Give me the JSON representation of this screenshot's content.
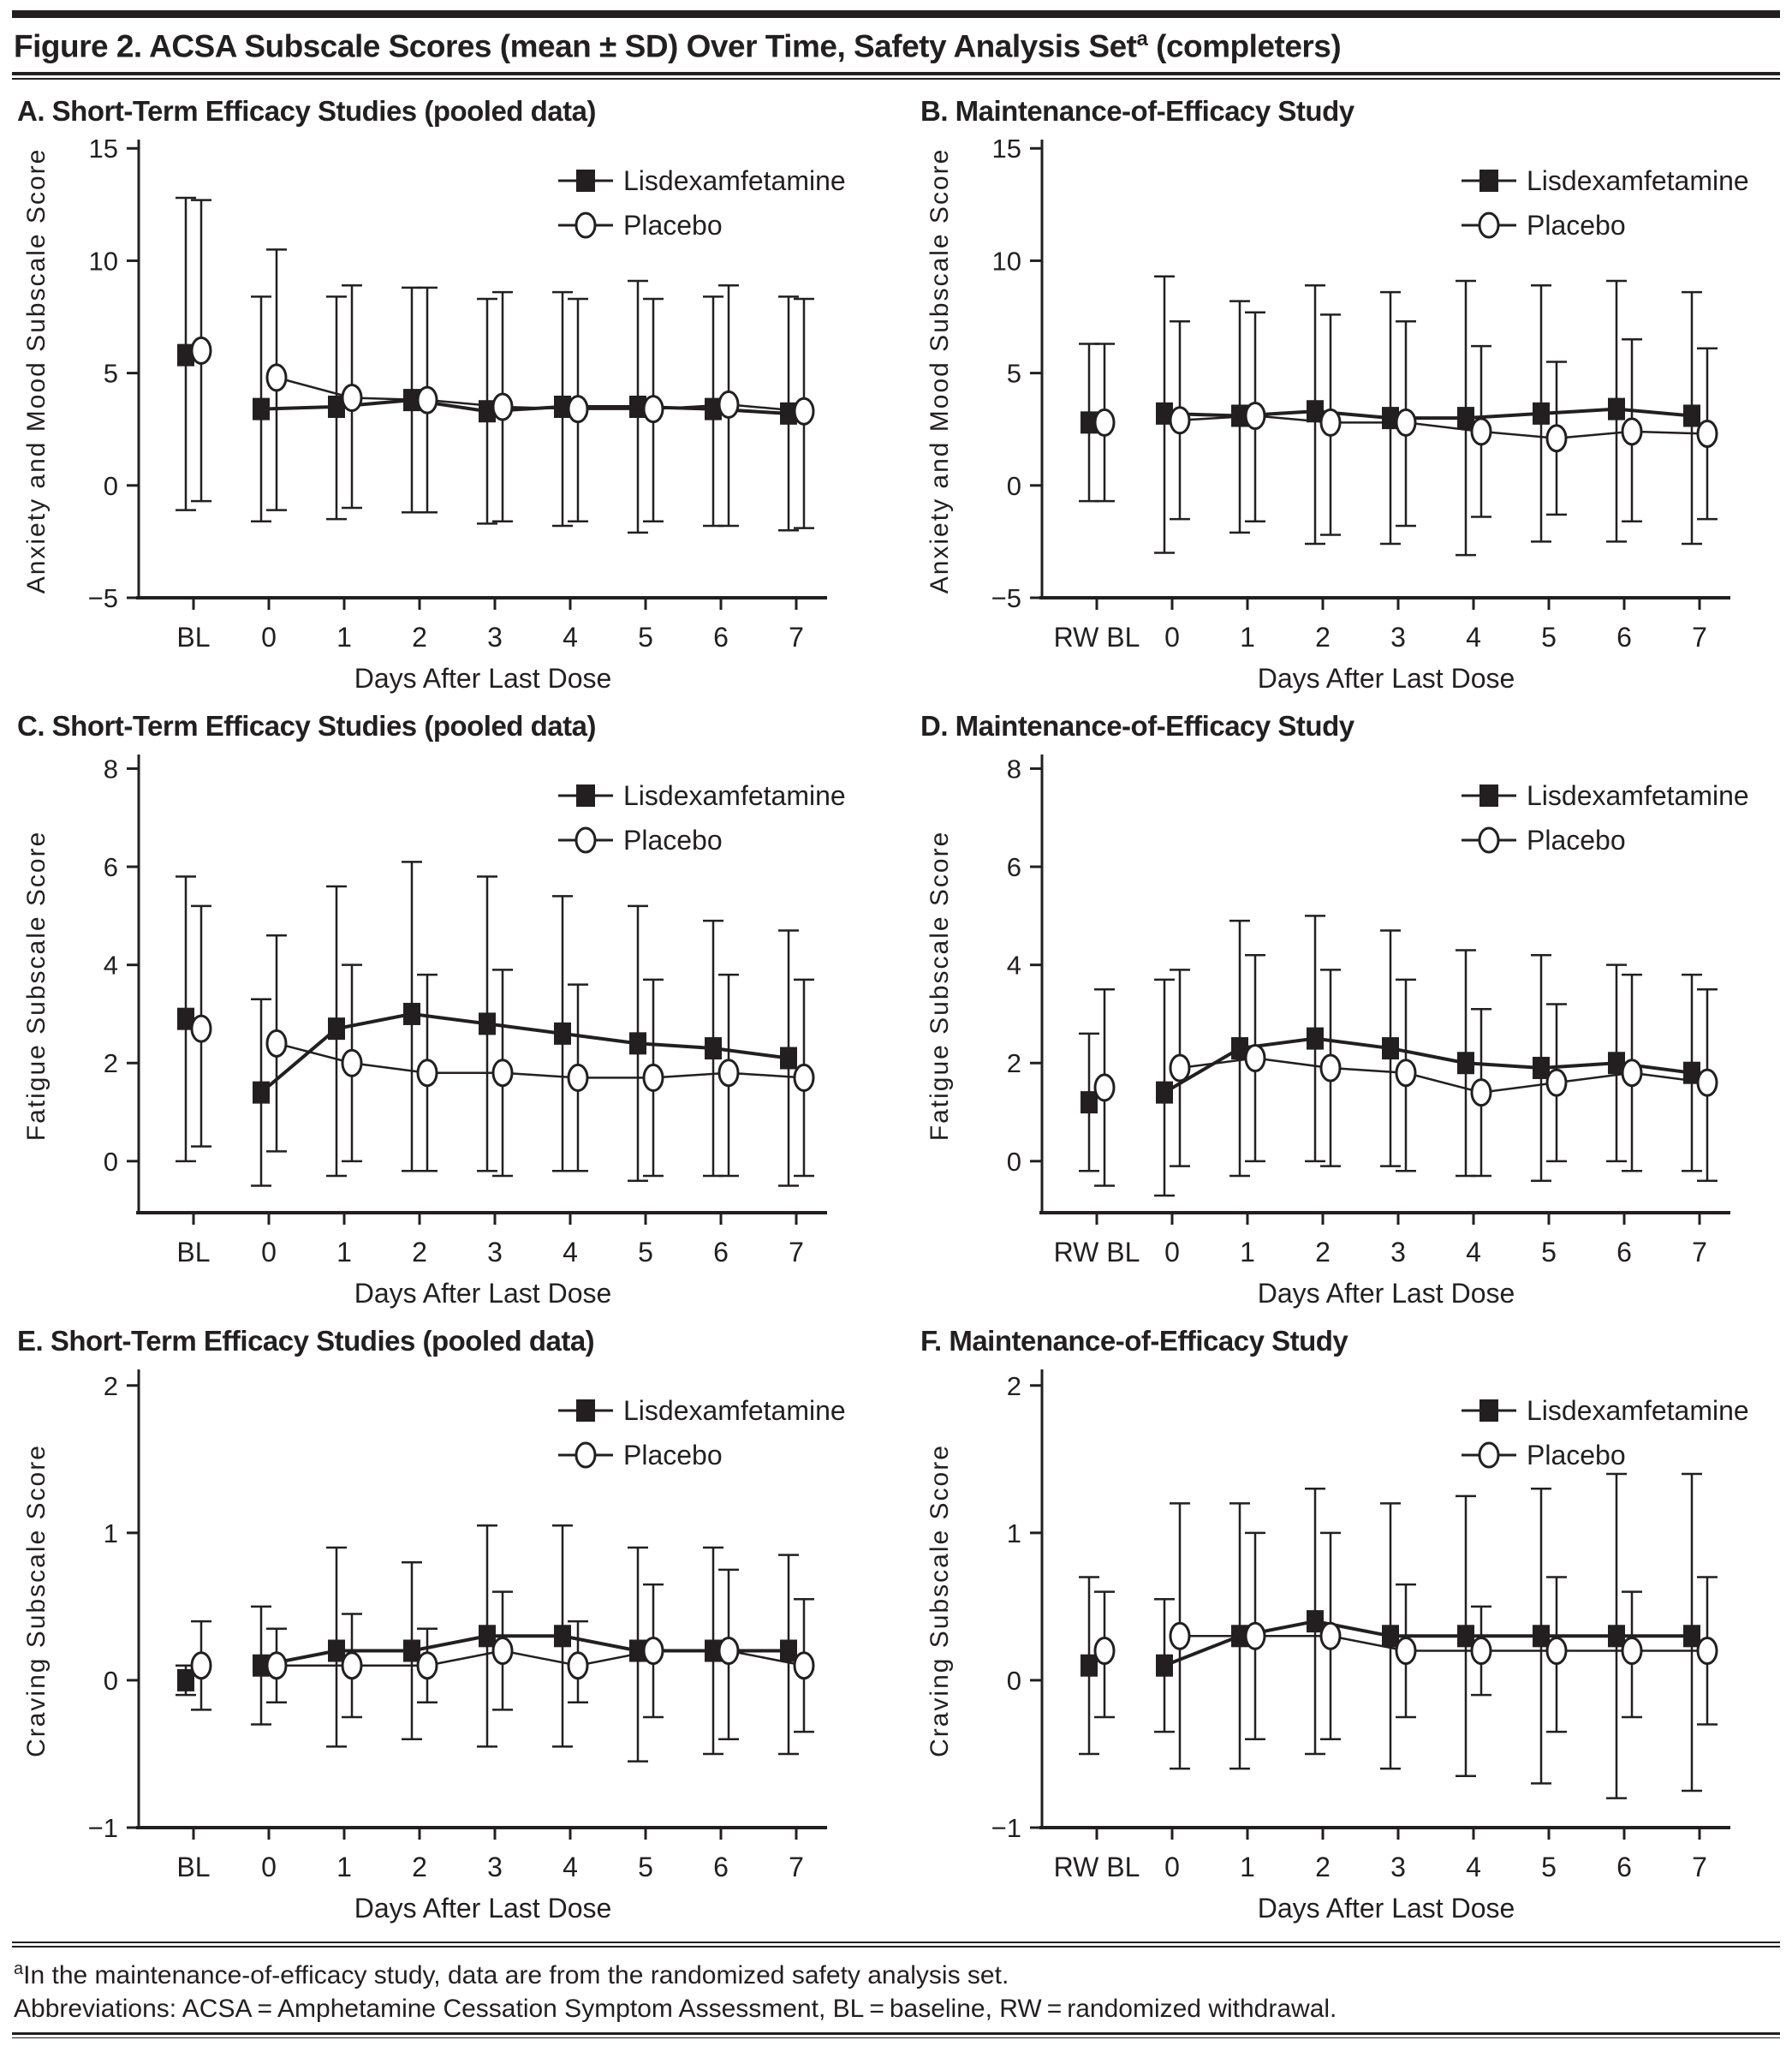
{
  "figure": {
    "title_main": "Figure 2. ACSA Subscale Scores (mean ± SD) Over Time, Safety Analysis Set",
    "title_sup": "a",
    "title_tail": " (completers)"
  },
  "footnotes": {
    "sup": "a",
    "line1": "In the maintenance-of-efficacy study, data are from the randomized safety analysis set.",
    "line2": "Abbreviations: ACSA = Amphetamine Cessation Symptom Assessment, BL = baseline, RW = randomized withdrawal."
  },
  "colors": {
    "ink": "#231f20",
    "background": "#ffffff"
  },
  "chart_data": [
    {
      "id": "A",
      "type": "line",
      "title": "A. Short-Term Efficacy Studies (pooled data)",
      "xlabel": "Days After Last Dose",
      "ylabel": "Anxiety and Mood Subscale Score",
      "ylim": [
        -5,
        15.2
      ],
      "yticks": [
        -5,
        0,
        5,
        10,
        15
      ],
      "error_bars": "mean ± SD",
      "legend_position": "top-right-inside",
      "categories": [
        "BL",
        "0",
        "1",
        "2",
        "3",
        "4",
        "5",
        "6",
        "7"
      ],
      "series": [
        {
          "name": "Lisdexamfetamine",
          "marker": "filled-square",
          "mean": [
            5.8,
            3.4,
            3.5,
            3.8,
            3.3,
            3.5,
            3.5,
            3.4,
            3.2
          ],
          "upper": [
            12.8,
            8.4,
            8.4,
            8.8,
            8.3,
            8.6,
            9.1,
            8.4,
            8.4
          ],
          "lower": [
            -1.1,
            -1.6,
            -1.5,
            -1.2,
            -1.7,
            -1.8,
            -2.1,
            -1.8,
            -2.0
          ]
        },
        {
          "name": "Placebo",
          "marker": "open-circle",
          "mean": [
            6.0,
            4.8,
            3.9,
            3.8,
            3.5,
            3.4,
            3.4,
            3.6,
            3.3
          ],
          "upper": [
            12.7,
            10.5,
            8.9,
            8.8,
            8.6,
            8.3,
            8.3,
            8.9,
            8.3
          ],
          "lower": [
            -0.7,
            -1.1,
            -1.0,
            -1.2,
            -1.6,
            -1.6,
            -1.6,
            -1.8,
            -1.9
          ]
        }
      ]
    },
    {
      "id": "B",
      "type": "line",
      "title": "B. Maintenance-of-Efficacy Study",
      "xlabel": "Days After Last Dose",
      "ylabel": "Anxiety and Mood Subscale Score",
      "ylim": [
        -5,
        15.2
      ],
      "yticks": [
        -5,
        0,
        5,
        10,
        15
      ],
      "error_bars": "mean ± SD",
      "legend_position": "top-right-inside",
      "categories": [
        "RW BL",
        "0",
        "1",
        "2",
        "3",
        "4",
        "5",
        "6",
        "7"
      ],
      "series": [
        {
          "name": "Lisdexamfetamine",
          "marker": "filled-square",
          "mean": [
            2.8,
            3.2,
            3.1,
            3.3,
            3.0,
            3.0,
            3.2,
            3.4,
            3.1
          ],
          "upper": [
            6.3,
            9.3,
            8.2,
            8.9,
            8.6,
            9.1,
            8.9,
            9.1,
            8.6
          ],
          "lower": [
            -0.7,
            -3.0,
            -2.1,
            -2.6,
            -2.6,
            -3.1,
            -2.5,
            -2.5,
            -2.6
          ]
        },
        {
          "name": "Placebo",
          "marker": "open-circle",
          "mean": [
            2.8,
            2.9,
            3.1,
            2.8,
            2.8,
            2.4,
            2.1,
            2.4,
            2.3
          ],
          "upper": [
            6.3,
            7.3,
            7.7,
            7.6,
            7.3,
            6.2,
            5.5,
            6.5,
            6.1
          ],
          "lower": [
            -0.7,
            -1.5,
            -1.6,
            -2.2,
            -1.8,
            -1.4,
            -1.3,
            -1.6,
            -1.5
          ]
        }
      ]
    },
    {
      "id": "C",
      "type": "line",
      "title": "C. Short-Term Efficacy Studies (pooled data)",
      "xlabel": "Days After Last Dose",
      "ylabel": "Fatigue Subscale Score",
      "ylim": [
        -1.05,
        8.2
      ],
      "yticks": [
        0,
        2,
        4,
        6,
        8
      ],
      "error_bars": "mean ± SD",
      "legend_position": "top-right-inside",
      "categories": [
        "BL",
        "0",
        "1",
        "2",
        "3",
        "4",
        "5",
        "6",
        "7"
      ],
      "series": [
        {
          "name": "Lisdexamfetamine",
          "marker": "filled-square",
          "mean": [
            2.9,
            1.4,
            2.7,
            3.0,
            2.8,
            2.6,
            2.4,
            2.3,
            2.1
          ],
          "upper": [
            5.8,
            3.3,
            5.6,
            6.1,
            5.8,
            5.4,
            5.2,
            4.9,
            4.7
          ],
          "lower": [
            0.0,
            -0.5,
            -0.3,
            -0.2,
            -0.2,
            -0.2,
            -0.4,
            -0.3,
            -0.5
          ]
        },
        {
          "name": "Placebo",
          "marker": "open-circle",
          "mean": [
            2.7,
            2.4,
            2.0,
            1.8,
            1.8,
            1.7,
            1.7,
            1.8,
            1.7
          ],
          "upper": [
            5.2,
            4.6,
            4.0,
            3.8,
            3.9,
            3.6,
            3.7,
            3.8,
            3.7
          ],
          "lower": [
            0.3,
            0.2,
            0.0,
            -0.2,
            -0.3,
            -0.2,
            -0.3,
            -0.3,
            -0.3
          ]
        }
      ]
    },
    {
      "id": "D",
      "type": "line",
      "title": "D. Maintenance-of-Efficacy Study",
      "xlabel": "Days After Last Dose",
      "ylabel": "Fatigue Subscale Score",
      "ylim": [
        -1.05,
        8.2
      ],
      "yticks": [
        0,
        2,
        4,
        6,
        8
      ],
      "error_bars": "mean ± SD",
      "legend_position": "top-right-inside",
      "categories": [
        "RW BL",
        "0",
        "1",
        "2",
        "3",
        "4",
        "5",
        "6",
        "7"
      ],
      "series": [
        {
          "name": "Lisdexamfetamine",
          "marker": "filled-square",
          "mean": [
            1.2,
            1.4,
            2.3,
            2.5,
            2.3,
            2.0,
            1.9,
            2.0,
            1.8
          ],
          "upper": [
            2.6,
            3.7,
            4.9,
            5.0,
            4.7,
            4.3,
            4.2,
            4.0,
            3.8
          ],
          "lower": [
            -0.2,
            -0.7,
            -0.3,
            0.0,
            -0.1,
            -0.3,
            -0.4,
            0.0,
            -0.2
          ]
        },
        {
          "name": "Placebo",
          "marker": "open-circle",
          "mean": [
            1.5,
            1.9,
            2.1,
            1.9,
            1.8,
            1.4,
            1.6,
            1.8,
            1.6
          ],
          "upper": [
            3.5,
            3.9,
            4.2,
            3.9,
            3.7,
            3.1,
            3.2,
            3.8,
            3.5
          ],
          "lower": [
            -0.5,
            -0.1,
            0.0,
            -0.1,
            -0.2,
            -0.3,
            0.0,
            -0.2,
            -0.4
          ]
        }
      ]
    },
    {
      "id": "E",
      "type": "line",
      "title": "E. Short-Term Efficacy Studies (pooled data)",
      "xlabel": "Days After Last Dose",
      "ylabel": "Craving Subscale Score",
      "ylim": [
        -1,
        2.08
      ],
      "yticks": [
        -1,
        0,
        1,
        2
      ],
      "error_bars": "mean ± SD",
      "legend_position": "top-right-inside",
      "categories": [
        "BL",
        "0",
        "1",
        "2",
        "3",
        "4",
        "5",
        "6",
        "7"
      ],
      "series": [
        {
          "name": "Lisdexamfetamine",
          "marker": "filled-square",
          "mean": [
            0.0,
            0.1,
            0.2,
            0.2,
            0.3,
            0.3,
            0.2,
            0.2,
            0.2
          ],
          "upper": [
            0.1,
            0.5,
            0.9,
            0.8,
            1.05,
            1.05,
            0.9,
            0.9,
            0.85
          ],
          "lower": [
            -0.1,
            -0.3,
            -0.45,
            -0.4,
            -0.45,
            -0.45,
            -0.55,
            -0.5,
            -0.5
          ]
        },
        {
          "name": "Placebo",
          "marker": "open-circle",
          "mean": [
            0.1,
            0.1,
            0.1,
            0.1,
            0.2,
            0.1,
            0.2,
            0.2,
            0.1
          ],
          "upper": [
            0.4,
            0.35,
            0.45,
            0.35,
            0.6,
            0.4,
            0.65,
            0.75,
            0.55
          ],
          "lower": [
            -0.2,
            -0.15,
            -0.25,
            -0.15,
            -0.2,
            -0.15,
            -0.25,
            -0.4,
            -0.35
          ]
        }
      ]
    },
    {
      "id": "F",
      "type": "line",
      "title": "F. Maintenance-of-Efficacy Study",
      "xlabel": "Days After Last Dose",
      "ylabel": "Craving Subscale Score",
      "ylim": [
        -1,
        2.08
      ],
      "yticks": [
        -1,
        0,
        1,
        2
      ],
      "error_bars": "mean ± SD",
      "legend_position": "top-right-inside",
      "categories": [
        "RW BL",
        "0",
        "1",
        "2",
        "3",
        "4",
        "5",
        "6",
        "7"
      ],
      "series": [
        {
          "name": "Lisdexamfetamine",
          "marker": "filled-square",
          "mean": [
            0.1,
            0.1,
            0.3,
            0.4,
            0.3,
            0.3,
            0.3,
            0.3,
            0.3
          ],
          "upper": [
            0.7,
            0.55,
            1.2,
            1.3,
            1.2,
            1.25,
            1.3,
            1.4,
            1.4
          ],
          "lower": [
            -0.5,
            -0.35,
            -0.6,
            -0.5,
            -0.6,
            -0.65,
            -0.7,
            -0.8,
            -0.75
          ]
        },
        {
          "name": "Placebo",
          "marker": "open-circle",
          "mean": [
            0.2,
            0.3,
            0.3,
            0.3,
            0.2,
            0.2,
            0.2,
            0.2,
            0.2
          ],
          "upper": [
            0.6,
            1.2,
            1.0,
            1.0,
            0.65,
            0.5,
            0.7,
            0.6,
            0.7
          ],
          "lower": [
            -0.25,
            -0.6,
            -0.4,
            -0.4,
            -0.25,
            -0.1,
            -0.35,
            -0.25,
            -0.3
          ]
        }
      ]
    }
  ]
}
